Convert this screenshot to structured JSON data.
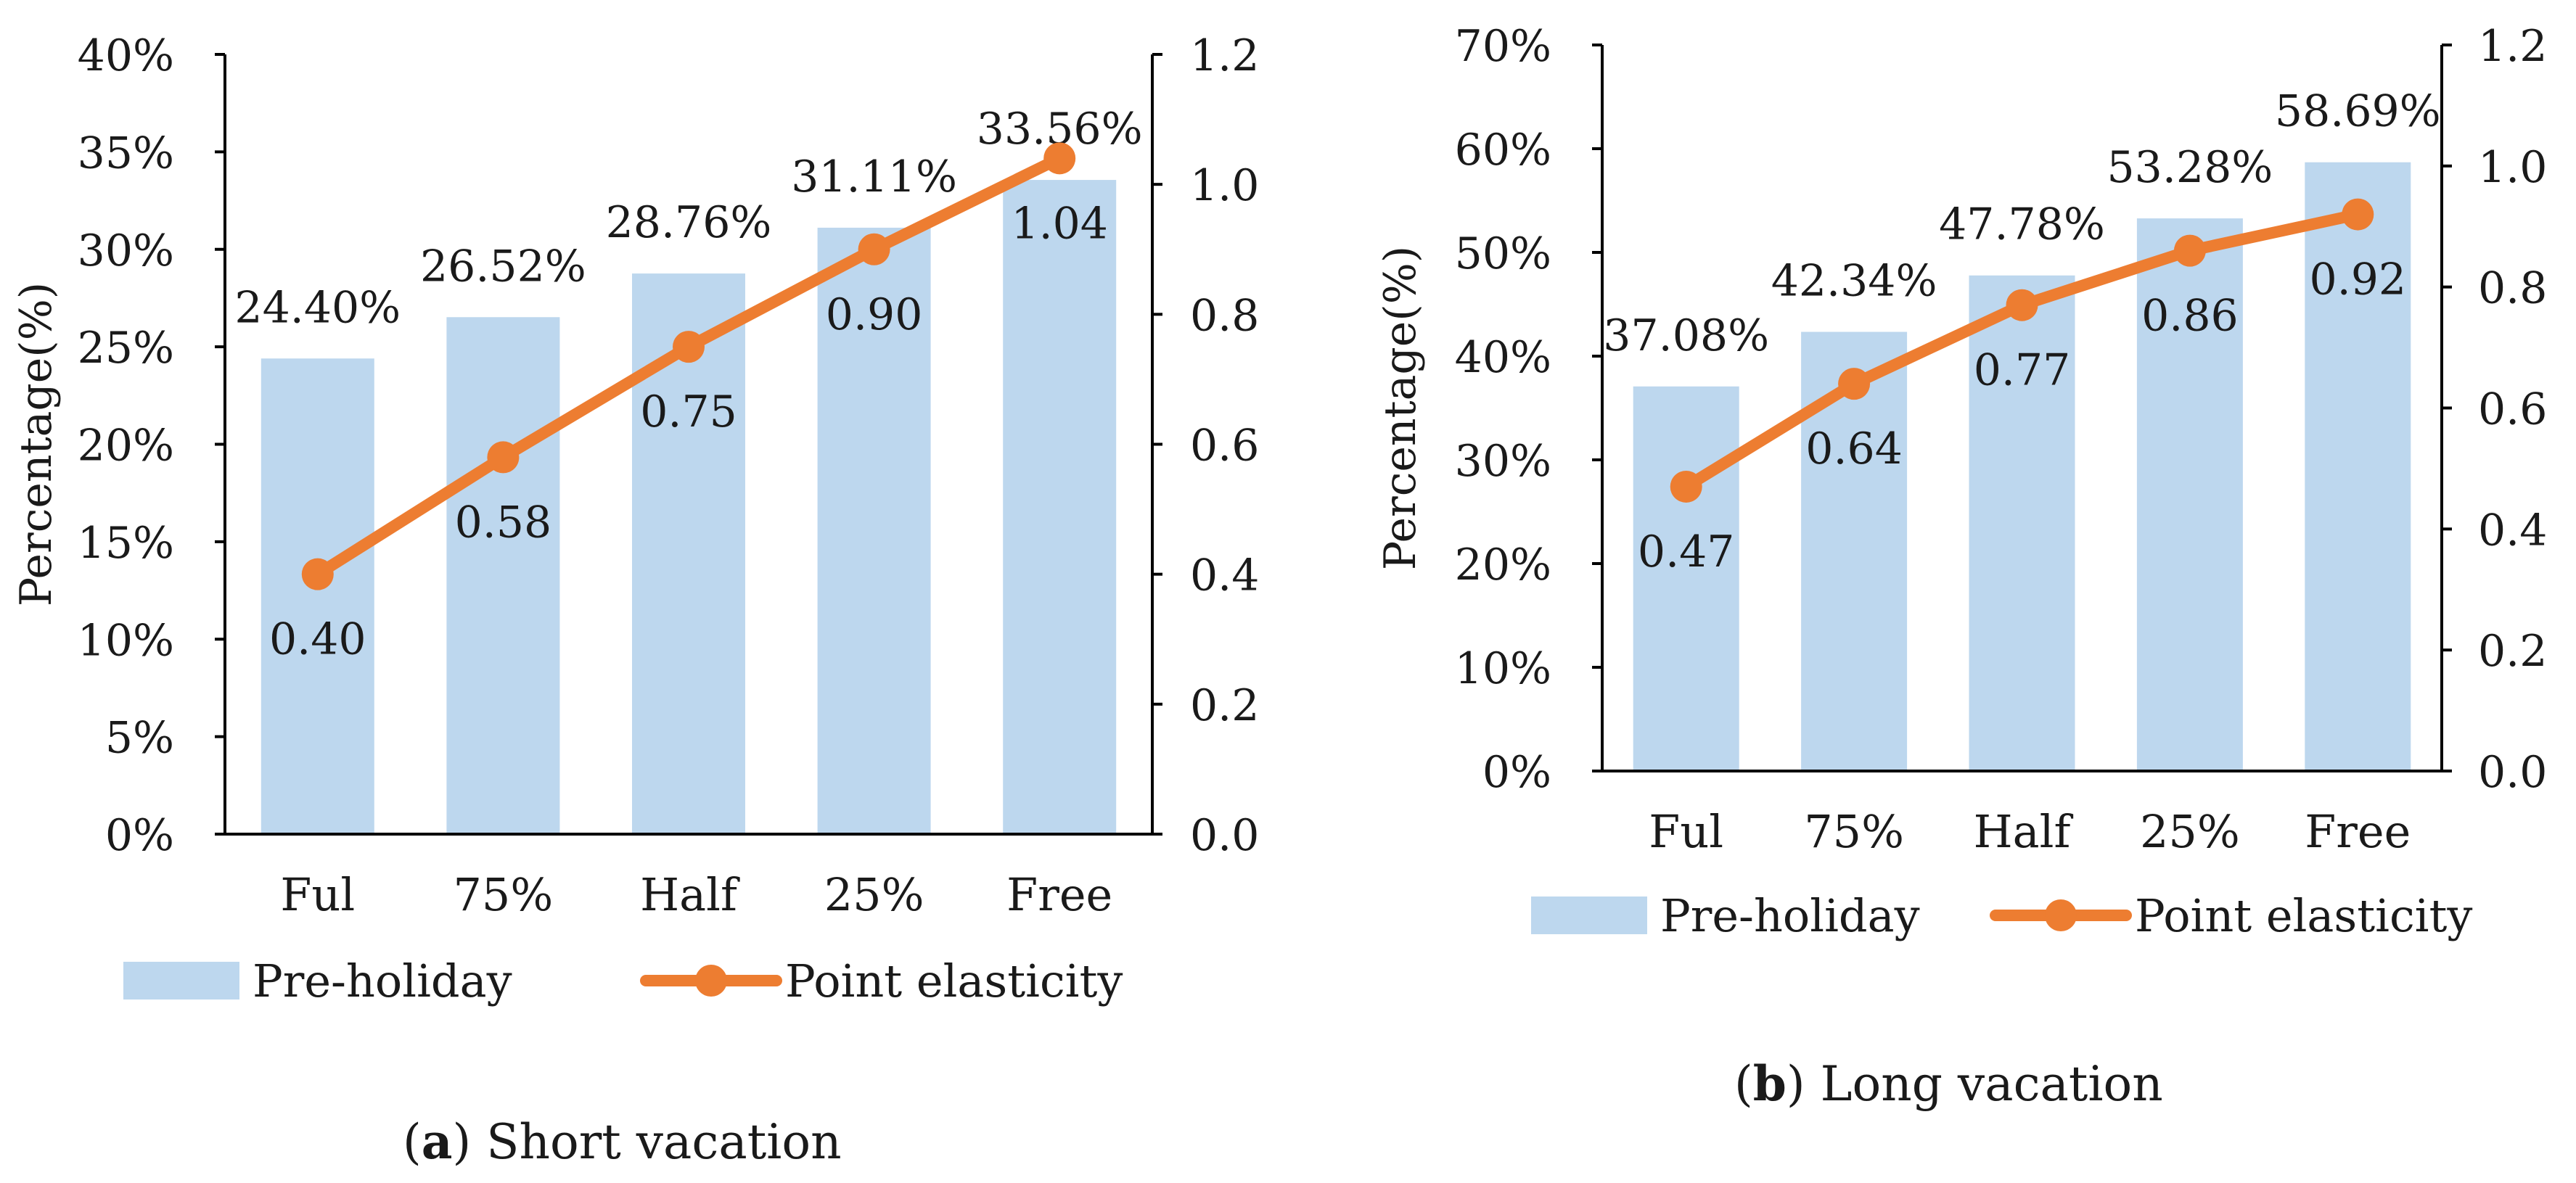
{
  "colors": {
    "bar": "#bdd7ee",
    "line": "#ed7d31",
    "axis": "#000000",
    "text": "#1a1a1a"
  },
  "chart_data": [
    {
      "type": "bar",
      "caption_letter": "a",
      "caption_text": " Short vacation",
      "categories": [
        "Ful",
        "75%",
        "Half",
        "25%",
        "Free"
      ],
      "ylabel": "Percentage(%)",
      "ylim": [
        0,
        40
      ],
      "yticks": [
        "0%",
        "5%",
        "10%",
        "15%",
        "20%",
        "25%",
        "30%",
        "35%",
        "40%"
      ],
      "y2lim": [
        0,
        1.2
      ],
      "y2ticks": [
        "0.0",
        "0.2",
        "0.4",
        "0.6",
        "0.8",
        "1.0",
        "1.2"
      ],
      "legend_position": "bottom",
      "grid": false,
      "series": [
        {
          "name": "Pre-holiday",
          "kind": "bar",
          "axis": "left",
          "values": [
            24.4,
            26.52,
            28.76,
            31.11,
            33.56
          ],
          "labels": [
            "24.40%",
            "26.52%",
            "28.76%",
            "31.11%",
            "33.56%"
          ]
        },
        {
          "name": "Point elasticity",
          "kind": "line",
          "axis": "right",
          "values": [
            0.4,
            0.58,
            0.75,
            0.9,
            1.04
          ],
          "labels": [
            "0.40",
            "0.58",
            "0.75",
            "0.90",
            "1.04"
          ]
        }
      ]
    },
    {
      "type": "bar",
      "caption_letter": "b",
      "caption_text": " Long vacation",
      "categories": [
        "Ful",
        "75%",
        "Half",
        "25%",
        "Free"
      ],
      "ylabel": "Percentage(%)",
      "ylim": [
        0,
        70
      ],
      "yticks": [
        "0%",
        "10%",
        "20%",
        "30%",
        "40%",
        "50%",
        "60%",
        "70%"
      ],
      "y2lim": [
        0,
        1.2
      ],
      "y2ticks": [
        "0.0",
        "0.2",
        "0.4",
        "0.6",
        "0.8",
        "1.0",
        "1.2"
      ],
      "legend_position": "bottom",
      "grid": false,
      "series": [
        {
          "name": "Pre-holiday",
          "kind": "bar",
          "axis": "left",
          "values": [
            37.08,
            42.34,
            47.78,
            53.28,
            58.69
          ],
          "labels": [
            "37.08%",
            "42.34%",
            "47.78%",
            "53.28%",
            "58.69%"
          ]
        },
        {
          "name": "Point elasticity",
          "kind": "line",
          "axis": "right",
          "values": [
            0.47,
            0.64,
            0.77,
            0.86,
            0.92
          ],
          "labels": [
            "0.47",
            "0.64",
            "0.77",
            "0.86",
            "0.92"
          ]
        }
      ]
    }
  ]
}
